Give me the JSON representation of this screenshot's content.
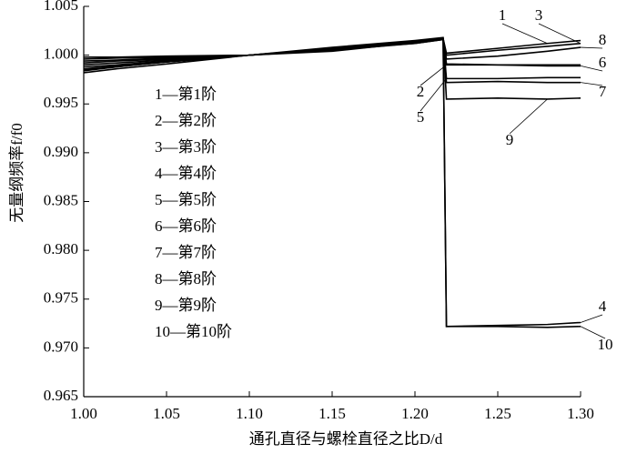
{
  "chart_data": {
    "type": "line",
    "xlabel": "通孔直径与螺栓直径之比D/d",
    "ylabel": "无量纲频率f/f0",
    "x": [
      1.0,
      1.02,
      1.05,
      1.1,
      1.15,
      1.2,
      1.217,
      1.219,
      1.25,
      1.28,
      1.3
    ],
    "xlim": [
      1.0,
      1.3
    ],
    "xticks": [
      {
        "value": 1.0,
        "label": "1.00"
      },
      1.05,
      {
        "value": 1.1,
        "label": "1.10"
      },
      1.15,
      {
        "value": 1.2,
        "label": "1.20"
      },
      1.25,
      {
        "value": 1.3,
        "label": "1.30"
      }
    ],
    "ylim": [
      0.965,
      1.005
    ],
    "yticks": [
      0.965,
      {
        "value": 0.97,
        "label": "0.970"
      },
      0.975,
      {
        "value": 0.98,
        "label": "0.980"
      },
      0.985,
      {
        "value": 0.99,
        "label": "0.990"
      },
      0.995,
      {
        "value": 1.0,
        "label": "1.000"
      },
      1.005
    ],
    "series": [
      {
        "name": "1—第1阶",
        "label": "1",
        "color": "#000000",
        "values": [
          0.9992,
          0.9994,
          0.9996,
          1.0,
          1.0004,
          1.0013,
          1.0017,
          1.0002,
          1.0007,
          1.0012,
          1.0015
        ]
      },
      {
        "name": "2—第2阶",
        "label": "2",
        "color": "#000000",
        "values": [
          0.9998,
          0.9998,
          0.9999,
          1.0,
          1.0006,
          1.0012,
          1.0016,
          0.999,
          0.999,
          0.999,
          0.999
        ]
      },
      {
        "name": "3—第3阶",
        "label": "3",
        "color": "#000000",
        "values": [
          0.999,
          0.9992,
          0.9995,
          1.0,
          1.0005,
          1.0013,
          1.0017,
          1.0,
          1.0005,
          1.0009,
          1.0012
        ]
      },
      {
        "name": "4—第4阶",
        "label": "4",
        "color": "#000000",
        "values": [
          0.9986,
          0.9989,
          0.9993,
          1.0,
          1.0007,
          1.0014,
          1.0017,
          0.9722,
          0.9723,
          0.9724,
          0.9726
        ]
      },
      {
        "name": "5—第5阶",
        "label": "5",
        "color": "#000000",
        "values": [
          0.9988,
          0.999,
          0.9994,
          1.0,
          1.0006,
          1.0014,
          1.0017,
          0.9976,
          0.9976,
          0.9977,
          0.9977
        ]
      },
      {
        "name": "6—第6阶",
        "label": "6",
        "color": "#000000",
        "values": [
          0.9996,
          0.9997,
          0.9998,
          1.0,
          1.0005,
          1.0012,
          1.0016,
          0.9991,
          0.999,
          0.9989,
          0.9989
        ]
      },
      {
        "name": "7—第7阶",
        "label": "7",
        "color": "#000000",
        "values": [
          0.9984,
          0.9988,
          0.9993,
          1.0,
          1.0007,
          1.0014,
          1.0017,
          0.9972,
          0.9973,
          0.9972,
          0.9972
        ]
      },
      {
        "name": "8—第8阶",
        "label": "8",
        "color": "#000000",
        "values": [
          0.9994,
          0.9995,
          0.9997,
          1.0,
          1.0005,
          1.0013,
          1.0016,
          0.9996,
          0.9999,
          1.0004,
          1.0008
        ]
      },
      {
        "name": "9—第9阶",
        "label": "9",
        "color": "#000000",
        "values": [
          0.9982,
          0.9986,
          0.9991,
          1.0,
          1.0008,
          1.0015,
          1.0018,
          0.9955,
          0.9956,
          0.9955,
          0.9956
        ]
      },
      {
        "name": "10—第10阶",
        "label": "10",
        "color": "#000000",
        "values": [
          0.9985,
          0.9988,
          0.9993,
          1.0,
          1.0007,
          1.0014,
          1.0017,
          0.9722,
          0.9722,
          0.9721,
          0.9722
        ]
      }
    ]
  }
}
